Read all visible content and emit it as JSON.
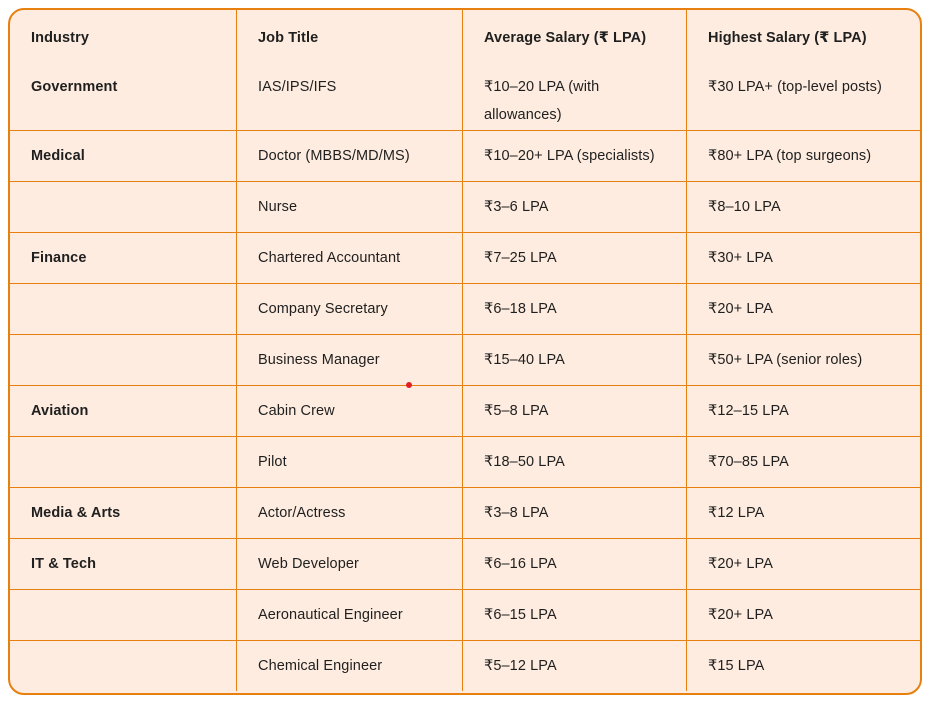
{
  "card": {
    "background_color": "#fdecdf",
    "border_color": "#e8800f",
    "text_color": "#1f1f1f",
    "red_dot_color": "#e02128"
  },
  "table": {
    "columns": [
      "Industry",
      "Job Title",
      "Average Salary (₹ LPA)",
      "Highest Salary (₹ LPA)"
    ],
    "rows": [
      {
        "industry": "Government",
        "job_title": "IAS/IPS/IFS",
        "average_salary": "₹10–20 LPA (with allowances)",
        "highest_salary": "₹30 LPA+ (top-level posts)"
      },
      {
        "industry": "Medical",
        "job_title": "Doctor (MBBS/MD/MS)",
        "average_salary": "₹10–20+ LPA (specialists)",
        "highest_salary": "₹80+ LPA (top surgeons)"
      },
      {
        "industry": "",
        "job_title": "Nurse",
        "average_salary": "₹3–6 LPA",
        "highest_salary": "₹8–10 LPA"
      },
      {
        "industry": "Finance",
        "job_title": "Chartered Accountant",
        "average_salary": "₹7–25 LPA",
        "highest_salary": "₹30+ LPA"
      },
      {
        "industry": "",
        "job_title": "Company Secretary",
        "average_salary": "₹6–18 LPA",
        "highest_salary": "₹20+ LPA"
      },
      {
        "industry": "",
        "job_title": "Business Manager",
        "average_salary": "₹15–40 LPA",
        "highest_salary": "₹50+ LPA (senior roles)"
      },
      {
        "industry": "Aviation",
        "job_title": "Cabin Crew",
        "average_salary": "₹5–8 LPA",
        "highest_salary": "₹12–15 LPA"
      },
      {
        "industry": "",
        "job_title": "Pilot",
        "average_salary": "₹18–50 LPA",
        "highest_salary": "₹70–85 LPA"
      },
      {
        "industry": "Media & Arts",
        "job_title": "Actor/Actress",
        "average_salary": "₹3–8 LPA",
        "highest_salary": "₹12 LPA"
      },
      {
        "industry": "IT & Tech",
        "job_title": "Web Developer",
        "average_salary": "₹6–16 LPA",
        "highest_salary": "₹20+ LPA"
      },
      {
        "industry": "",
        "job_title": "Aeronautical Engineer",
        "average_salary": "₹6–15 LPA",
        "highest_salary": "₹20+ LPA"
      },
      {
        "industry": "",
        "job_title": "Chemical Engineer",
        "average_salary": "₹5–12 LPA",
        "highest_salary": "₹15 LPA"
      }
    ]
  }
}
